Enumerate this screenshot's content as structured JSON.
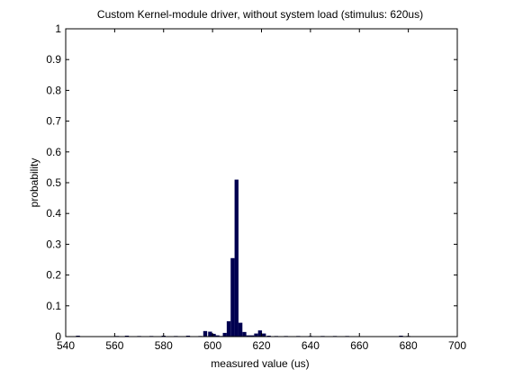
{
  "chart_data": {
    "type": "bar",
    "title": "Custom Kernel-module driver, without system load (stimulus: 620us)",
    "xlabel": "measured value (us)",
    "ylabel": "probability",
    "xlim": [
      540,
      700
    ],
    "ylim": [
      0,
      1
    ],
    "xticks": [
      "540",
      "560",
      "580",
      "600",
      "620",
      "640",
      "660",
      "680",
      "700"
    ],
    "yticks": [
      "0",
      "0.1",
      "0.2",
      "0.3",
      "0.4",
      "0.5",
      "0.6",
      "0.7",
      "0.8",
      "0.9",
      "1"
    ],
    "grid": false,
    "bar_color": "#000050",
    "bin_width": 1.6,
    "x": [
      545,
      558,
      561,
      565,
      570,
      575,
      580,
      585,
      590,
      595,
      597,
      599,
      600.5,
      602,
      603.5,
      605,
      606.6,
      608.2,
      609.8,
      611.4,
      613,
      614.6,
      616.2,
      617.8,
      619.4,
      621,
      623,
      626,
      630,
      635,
      640,
      645,
      650,
      655,
      660,
      677,
      680
    ],
    "values": [
      0.003,
      0.001,
      0.002,
      0.003,
      0.002,
      0.002,
      0.003,
      0.002,
      0.003,
      0.002,
      0.018,
      0.016,
      0.009,
      0.004,
      0.002,
      0.012,
      0.05,
      0.255,
      0.51,
      0.045,
      0.015,
      0.004,
      0.004,
      0.01,
      0.02,
      0.01,
      0.003,
      0.002,
      0.002,
      0.002,
      0.002,
      0.002,
      0.002,
      0.002,
      0.001,
      0.003,
      0.002
    ]
  }
}
